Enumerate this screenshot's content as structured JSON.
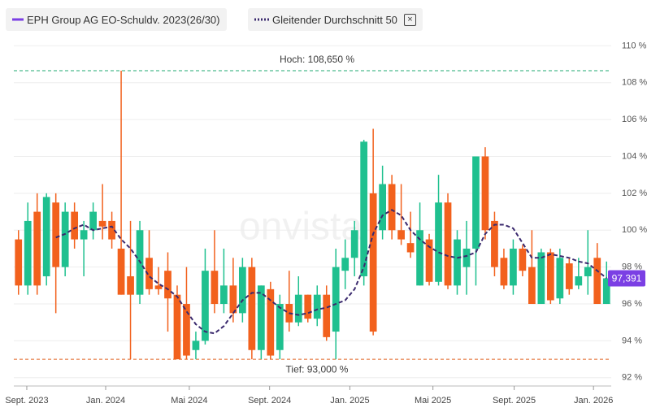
{
  "chart_data": {
    "type": "candlestick",
    "watermark": "onvista",
    "categories": [
      null,
      null,
      null,
      null,
      null,
      null,
      null,
      null,
      null,
      null,
      null,
      null,
      null,
      null,
      null,
      null,
      null,
      null,
      null,
      null,
      null,
      null,
      null,
      null,
      null,
      null,
      null,
      null,
      null,
      null,
      null,
      null,
      null,
      null,
      null,
      null,
      null,
      null,
      null,
      null,
      null,
      null,
      null,
      null,
      null,
      null,
      null,
      null,
      null,
      null,
      null,
      null,
      null,
      null,
      null,
      null,
      null,
      null,
      null,
      null,
      null,
      null,
      null,
      null
    ],
    "series": [
      {
        "name": "EPH Group AG EO-Schuldv. 2023(26/30)",
        "color": "#7b3fe4",
        "up_color": "#1fc08f",
        "down_color": "#f2611d",
        "open": [
          99.5,
          97.0,
          101.0,
          97.5,
          101.5,
          98.0,
          101.0,
          99.5,
          100.0,
          100.5,
          100.5,
          99.0,
          97.5,
          96.5,
          98.5,
          97.0,
          97.8,
          96.5,
          96.0,
          93.5,
          94.0,
          97.8,
          96.0,
          97.0,
          95.5,
          98.0,
          93.5,
          96.8,
          93.5,
          96.0,
          95.0,
          96.5,
          95.2,
          96.5,
          94.5,
          97.8,
          98.5,
          97.5,
          102.0,
          100.0,
          102.5,
          100.0,
          99.3,
          97.0,
          99.5,
          97.2,
          101.5,
          97.0,
          98.0,
          99.0,
          104.0,
          100.5,
          98.5,
          97.0,
          99.0,
          98.0,
          96.0,
          98.8,
          96.3,
          98.2,
          97.0,
          97.5,
          98.5,
          96.0
        ],
        "high": [
          100.0,
          101.5,
          102.0,
          102.0,
          102.0,
          101.5,
          101.5,
          100.5,
          101.5,
          102.5,
          101.0,
          108.65,
          100.5,
          100.5,
          100.0,
          98.0,
          98.8,
          97.0,
          98.0,
          94.5,
          99.0,
          100.0,
          99.0,
          98.5,
          98.5,
          98.5,
          97.0,
          97.2,
          96.5,
          97.8,
          97.5,
          96.5,
          97.0,
          97.0,
          99.0,
          99.5,
          100.5,
          104.9,
          105.5,
          103.5,
          103.0,
          102.5,
          101.0,
          101.5,
          99.8,
          103.0,
          102.0,
          100.0,
          100.5,
          104.0,
          104.5,
          101.0,
          99.0,
          99.5,
          99.2,
          100.0,
          99.0,
          99.0,
          99.0,
          98.5,
          98.5,
          100.0,
          99.3,
          98.3
        ],
        "low": [
          96.5,
          96.5,
          96.5,
          97.0,
          95.5,
          97.5,
          99.0,
          97.5,
          99.5,
          99.5,
          99.0,
          96.5,
          93.0,
          96.0,
          96.5,
          96.5,
          94.5,
          93.0,
          93.0,
          93.0,
          93.8,
          95.5,
          95.5,
          95.0,
          95.0,
          93.0,
          93.0,
          93.0,
          93.0,
          94.5,
          94.8,
          95.0,
          94.8,
          94.0,
          93.0,
          96.8,
          97.5,
          97.0,
          94.3,
          99.5,
          99.5,
          99.2,
          98.5,
          97.0,
          97.0,
          97.0,
          96.8,
          96.5,
          96.5,
          97.0,
          99.5,
          97.5,
          96.8,
          96.5,
          97.5,
          96.0,
          96.0,
          96.0,
          96.0,
          96.5,
          96.8,
          96.5,
          96.0,
          96.0
        ],
        "close": [
          97.0,
          100.5,
          97.0,
          101.8,
          98.0,
          101.0,
          99.5,
          100.0,
          101.0,
          100.2,
          99.5,
          96.5,
          96.5,
          100.0,
          96.8,
          96.8,
          96.3,
          93.0,
          93.2,
          94.0,
          97.8,
          96.0,
          97.0,
          95.5,
          98.0,
          93.5,
          97.0,
          93.2,
          96.0,
          95.0,
          96.5,
          95.2,
          96.5,
          94.2,
          98.0,
          98.5,
          100.0,
          104.8,
          94.5,
          102.5,
          100.0,
          99.5,
          98.8,
          100.0,
          97.2,
          101.5,
          97.0,
          99.5,
          99.0,
          104.0,
          100.0,
          98.0,
          97.0,
          99.0,
          97.8,
          96.0,
          98.8,
          96.2,
          98.5,
          96.8,
          97.5,
          98.0,
          96.0,
          97.391
        ],
        "last_label": {
          "value": 97.391,
          "label": "97,391"
        }
      },
      {
        "name": "Gleitender Durchschnitt 50",
        "color": "#3b2a6e",
        "dashed": true,
        "values": [
          null,
          null,
          null,
          null,
          99.6,
          99.8,
          100.1,
          100.3,
          100.0,
          100.1,
          100.2,
          99.5,
          99.0,
          98.3,
          97.5,
          97.1,
          96.8,
          96.4,
          95.6,
          94.9,
          94.5,
          94.4,
          94.8,
          95.5,
          96.2,
          96.6,
          96.6,
          96.2,
          95.8,
          95.5,
          95.4,
          95.5,
          95.7,
          95.8,
          96.0,
          96.2,
          96.8,
          98.0,
          99.8,
          100.8,
          101.1,
          100.8,
          100.0,
          99.5,
          99.1,
          98.8,
          98.6,
          98.5,
          98.6,
          98.8,
          99.8,
          100.3,
          100.3,
          100.1,
          99.3,
          98.5,
          98.5,
          98.7,
          98.6,
          98.5,
          98.3,
          98.2,
          97.8,
          97.4
        ]
      }
    ],
    "annotations": [
      {
        "label": "Hoch: 108,650 %",
        "value": 108.65,
        "color": "#1fa870"
      },
      {
        "label": "Tief: 93,000 %",
        "value": 93.0,
        "color": "#e0601d"
      }
    ],
    "ylim": [
      91.55,
      110.5
    ],
    "yticks": [
      {
        "value": 92,
        "label": "92 %"
      },
      {
        "value": 94,
        "label": "94 %"
      },
      {
        "value": 96,
        "label": "96 %"
      },
      {
        "value": 98,
        "label": "98 %"
      },
      {
        "value": 100,
        "label": "100 %"
      },
      {
        "value": 102,
        "label": "102 %"
      },
      {
        "value": 104,
        "label": "104 %"
      },
      {
        "value": 106,
        "label": "106 %"
      },
      {
        "value": 108,
        "label": "108 %"
      },
      {
        "value": 110,
        "label": "110 %"
      }
    ],
    "xticks": [
      {
        "value": 0.89,
        "label": "Sept. 2023"
      },
      {
        "value": 9.34,
        "label": "Jan. 2024"
      },
      {
        "value": 18.3,
        "label": "Mai 2024"
      },
      {
        "value": 26.9,
        "label": "Sept. 2024"
      },
      {
        "value": 35.5,
        "label": "Jan. 2025"
      },
      {
        "value": 44.4,
        "label": "Mai 2025"
      },
      {
        "value": 53.1,
        "label": "Sept. 2025"
      },
      {
        "value": 61.6,
        "label": "Jan. 2026"
      }
    ],
    "grid": true
  }
}
